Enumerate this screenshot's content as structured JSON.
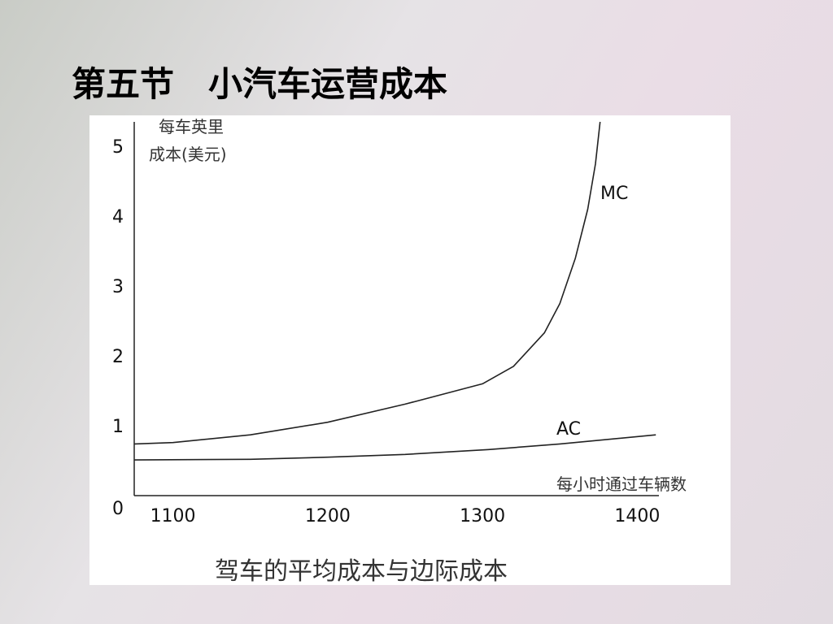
{
  "chart_data": {
    "type": "line",
    "title": "第五节　小汽车运营成本",
    "ylabel": [
      "每车英里",
      "成本(美元)"
    ],
    "xlabel": "每小时通过车辆数",
    "caption": "驾车的平均成本与边际成本",
    "xlim": [
      1075,
      1414
    ],
    "ylim": [
      0,
      5.35
    ],
    "xticks": [
      1100,
      1200,
      1300,
      1400
    ],
    "yticks": [
      0,
      1,
      2,
      3,
      4,
      5
    ],
    "series": [
      {
        "name": "MC",
        "color": "#222222",
        "x": [
          1075,
          1100,
          1150,
          1200,
          1250,
          1300,
          1320,
          1340,
          1350,
          1360,
          1368,
          1373,
          1376
        ],
        "values": [
          0.74,
          0.76,
          0.87,
          1.05,
          1.31,
          1.6,
          1.85,
          2.33,
          2.75,
          3.4,
          4.1,
          4.75,
          5.35
        ]
      },
      {
        "name": "AC",
        "color": "#222222",
        "x": [
          1075,
          1150,
          1200,
          1250,
          1304,
          1350,
          1412
        ],
        "values": [
          0.51,
          0.52,
          0.55,
          0.59,
          0.66,
          0.74,
          0.87
        ]
      }
    ]
  }
}
